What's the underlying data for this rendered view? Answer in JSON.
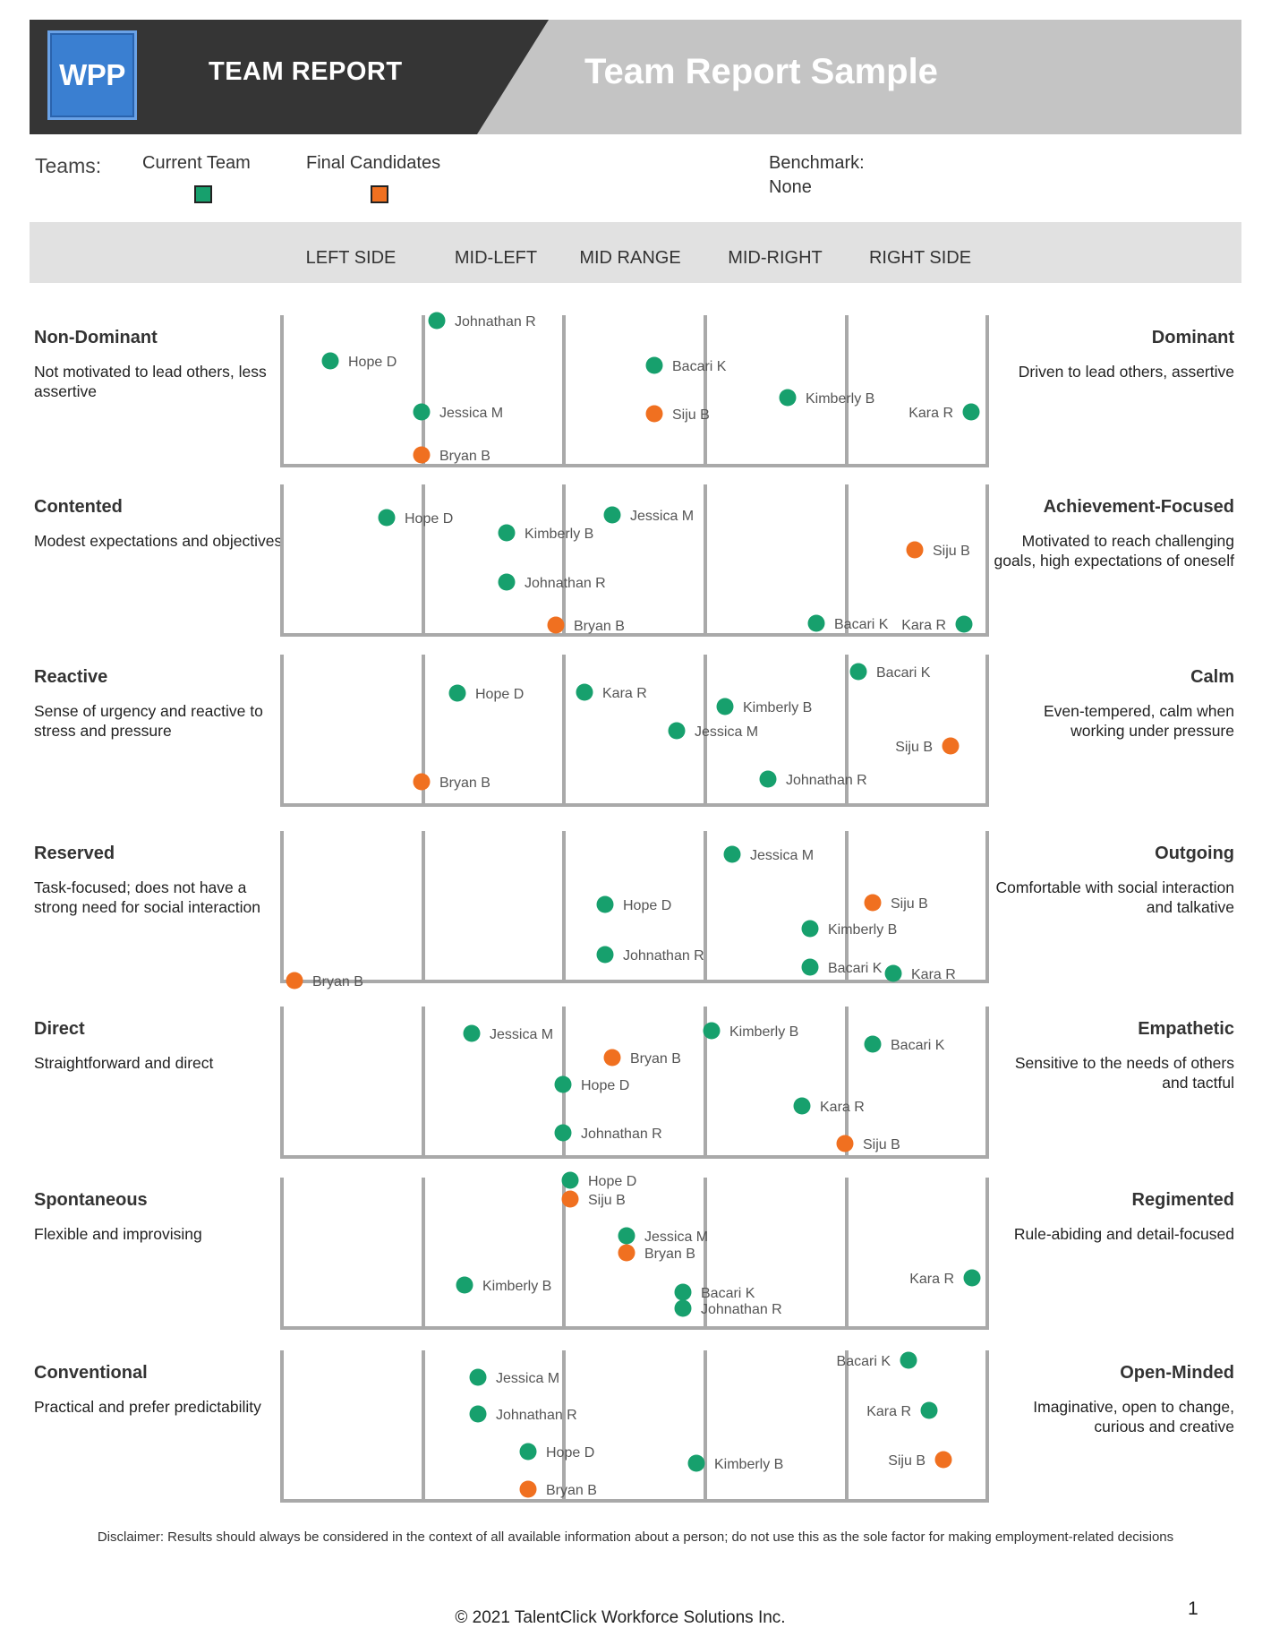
{
  "header": {
    "logo_text": "WPP",
    "report_label": "TEAM REPORT",
    "title": "Team Report Sample"
  },
  "legend": {
    "teams_label": "Teams:",
    "current_team": "Current Team",
    "final_candidates": "Final Candidates",
    "current_color": "#17a06d",
    "final_color": "#f07020",
    "benchmark_label": "Benchmark:",
    "benchmark_value": "None"
  },
  "columns": [
    "LEFT SIDE",
    "MID-LEFT",
    "MID RANGE",
    "MID-RIGHT",
    "RIGHT SIDE"
  ],
  "traits": [
    {
      "left_name": "Non-Dominant",
      "left_desc": "Not motivated to lead others, less assertive",
      "right_name": "Dominant",
      "right_desc": "Driven to lead others, assertive",
      "people": [
        {
          "name": "Johnathan R",
          "team": "current"
        },
        {
          "name": "Hope D",
          "team": "current"
        },
        {
          "name": "Bacari K",
          "team": "current"
        },
        {
          "name": "Kimberly B",
          "team": "current"
        },
        {
          "name": "Jessica M",
          "team": "current"
        },
        {
          "name": "Siju B",
          "team": "final"
        },
        {
          "name": "Kara R",
          "team": "current"
        },
        {
          "name": "Bryan B",
          "team": "final"
        }
      ]
    },
    {
      "left_name": "Contented",
      "left_desc": "Modest expectations and objectives",
      "right_name": "Achievement-Focused",
      "right_desc": "Motivated to reach challenging goals, high expectations of oneself",
      "people": [
        {
          "name": "Hope D",
          "team": "current"
        },
        {
          "name": "Jessica M",
          "team": "current"
        },
        {
          "name": "Kimberly B",
          "team": "current"
        },
        {
          "name": "Siju B",
          "team": "final"
        },
        {
          "name": "Johnathan R",
          "team": "current"
        },
        {
          "name": "Bryan B",
          "team": "final"
        },
        {
          "name": "Bacari K",
          "team": "current"
        },
        {
          "name": "Kara R",
          "team": "current"
        }
      ]
    },
    {
      "left_name": "Reactive",
      "left_desc": "Sense of urgency and reactive to stress and pressure",
      "right_name": "Calm",
      "right_desc": "Even-tempered, calm when working under pressure",
      "people": [
        {
          "name": "Bacari K",
          "team": "current"
        },
        {
          "name": "Hope D",
          "team": "current"
        },
        {
          "name": "Kara R",
          "team": "current"
        },
        {
          "name": "Kimberly B",
          "team": "current"
        },
        {
          "name": "Jessica M",
          "team": "current"
        },
        {
          "name": "Siju B",
          "team": "final"
        },
        {
          "name": "Bryan B",
          "team": "final"
        },
        {
          "name": "Johnathan R",
          "team": "current"
        }
      ]
    },
    {
      "left_name": "Reserved",
      "left_desc": "Task-focused; does not have a strong need for social interaction",
      "right_name": "Outgoing",
      "right_desc": "Comfortable with social interaction and talkative",
      "people": [
        {
          "name": "Jessica M",
          "team": "current"
        },
        {
          "name": "Siju B",
          "team": "final"
        },
        {
          "name": "Hope D",
          "team": "current"
        },
        {
          "name": "Kimberly B",
          "team": "current"
        },
        {
          "name": "Johnathan R",
          "team": "current"
        },
        {
          "name": "Bacari K",
          "team": "current"
        },
        {
          "name": "Kara R",
          "team": "current"
        },
        {
          "name": "Bryan B",
          "team": "final"
        }
      ]
    },
    {
      "left_name": "Direct",
      "left_desc": "Straightforward and direct",
      "right_name": "Empathetic",
      "right_desc": "Sensitive to the needs of others and tactful",
      "people": [
        {
          "name": "Kimberly B",
          "team": "current"
        },
        {
          "name": "Jessica M",
          "team": "current"
        },
        {
          "name": "Bacari K",
          "team": "current"
        },
        {
          "name": "Bryan B",
          "team": "final"
        },
        {
          "name": "Hope D",
          "team": "current"
        },
        {
          "name": "Kara R",
          "team": "current"
        },
        {
          "name": "Johnathan R",
          "team": "current"
        },
        {
          "name": "Siju B",
          "team": "final"
        }
      ]
    },
    {
      "left_name": "Spontaneous",
      "left_desc": "Flexible and improvising",
      "right_name": "Regimented",
      "right_desc": "Rule-abiding and detail-focused",
      "people": [
        {
          "name": "Hope D",
          "team": "current"
        },
        {
          "name": "Siju B",
          "team": "final"
        },
        {
          "name": "Jessica M",
          "team": "current"
        },
        {
          "name": "Bryan B",
          "team": "final"
        },
        {
          "name": "Kara R",
          "team": "current"
        },
        {
          "name": "Kimberly B",
          "team": "current"
        },
        {
          "name": "Bacari K",
          "team": "current"
        },
        {
          "name": "Johnathan R",
          "team": "current"
        }
      ]
    },
    {
      "left_name": "Conventional",
      "left_desc": "Practical and prefer predictability",
      "right_name": "Open-Minded",
      "right_desc": "Imaginative, open to change, curious and creative",
      "people": [
        {
          "name": "Bacari K",
          "team": "current"
        },
        {
          "name": "Jessica M",
          "team": "current"
        },
        {
          "name": "Kara R",
          "team": "current"
        },
        {
          "name": "Johnathan R",
          "team": "current"
        },
        {
          "name": "Hope D",
          "team": "current"
        },
        {
          "name": "Siju B",
          "team": "final"
        },
        {
          "name": "Kimberly B",
          "team": "current"
        },
        {
          "name": "Bryan B",
          "team": "final"
        }
      ]
    }
  ],
  "disclaimer": "Disclaimer: Results should always be considered in the context of all available information about a person; do not use this as the sole factor for making employment-related decisions",
  "copyright": "© 2021 TalentClick Workforce Solutions Inc.",
  "page_number": "1"
}
